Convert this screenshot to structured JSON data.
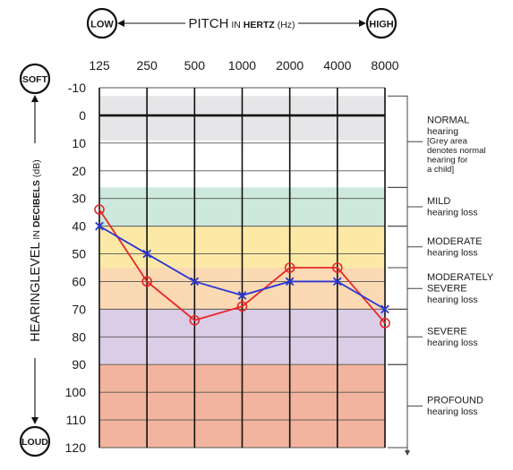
{
  "chart_data": {
    "type": "line",
    "title": "",
    "xlabel_main": "PITCH",
    "xlabel_in": "IN",
    "xlabel_unit": "HERTZ",
    "xlabel_abbr": "(Hz)",
    "x_low_label": "LOW",
    "x_high_label": "HIGH",
    "ylabel_main": "HEARINGLEVEL",
    "ylabel_in": "IN",
    "ylabel_unit": "DECIBELS",
    "ylabel_abbr": "(dB)",
    "y_top_label": "SOFT",
    "y_bottom_label": "LOUD",
    "x_categories": [
      "125",
      "250",
      "500",
      "1000",
      "2000",
      "4000",
      "8000"
    ],
    "y_ticks": [
      "-10",
      "0",
      "10",
      "20",
      "30",
      "40",
      "50",
      "60",
      "70",
      "80",
      "90",
      "100",
      "110",
      "120"
    ],
    "ylim": [
      -10,
      120
    ],
    "y_inverted": true,
    "grid": true,
    "zones": [
      {
        "from": -7,
        "to": 9,
        "color": "#e6e6e8"
      },
      {
        "from": 26,
        "to": 40,
        "color": "#cde8dc"
      },
      {
        "from": 40,
        "to": 55,
        "color": "#fde9a6"
      },
      {
        "from": 55,
        "to": 70,
        "color": "#fbd9b3"
      },
      {
        "from": 70,
        "to": 90,
        "color": "#dccde6"
      },
      {
        "from": 90,
        "to": 120,
        "color": "#f2b49e"
      }
    ],
    "bands": [
      {
        "from": -7,
        "to": 26,
        "line1": "NORMAL",
        "line2": "hearing",
        "note": [
          "[Grey area",
          "denotes normal",
          "hearing for",
          "a child]"
        ]
      },
      {
        "from": 26,
        "to": 40,
        "line1": "MILD",
        "line2": "hearing loss"
      },
      {
        "from": 40,
        "to": 55,
        "line1": "MODERATE",
        "line2": "hearing loss"
      },
      {
        "from": 55,
        "to": 70,
        "line1": "MODERATELY",
        "line1b": "SEVERE",
        "line2": "hearing loss"
      },
      {
        "from": 70,
        "to": 90,
        "line1": "SEVERE",
        "line2": "hearing loss"
      },
      {
        "from": 90,
        "to": 120,
        "line1": "PROFOUND",
        "line2": "hearing loss"
      }
    ],
    "series": [
      {
        "marker": "circle",
        "color": "#e8272a",
        "values": [
          34,
          60,
          74,
          69,
          55,
          55,
          75
        ]
      },
      {
        "marker": "x",
        "color": "#2a36d4",
        "values": [
          40,
          50,
          60,
          65,
          60,
          60,
          70
        ]
      }
    ]
  }
}
